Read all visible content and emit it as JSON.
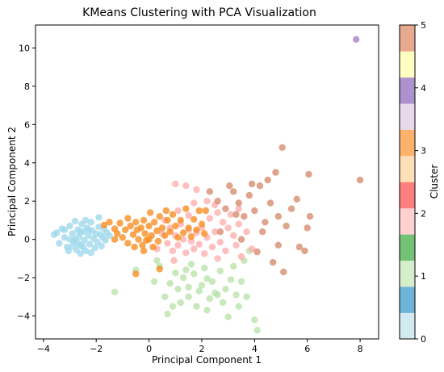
{
  "chart_data": {
    "type": "scatter",
    "title": "KMeans Clustering with PCA Visualization",
    "xlabel": "Principal Component 1",
    "ylabel": "Principal Component 2",
    "xlim": [
      -4.3,
      8.7
    ],
    "ylim": [
      -5.2,
      11.2
    ],
    "xticks": [
      -4,
      -2,
      0,
      2,
      4,
      6,
      8
    ],
    "xtick_labels": [
      "−4",
      "−2",
      "0",
      "2",
      "4",
      "6",
      "8"
    ],
    "yticks": [
      -4,
      -2,
      0,
      2,
      4,
      6,
      8,
      10
    ],
    "ytick_labels": [
      "−4",
      "−2",
      "0",
      "2",
      "4",
      "6",
      "8",
      "10"
    ],
    "grid": false,
    "colorbar": {
      "label": "Cluster",
      "range": [
        0,
        5
      ],
      "ticks": [
        0,
        1,
        2,
        3,
        4,
        5
      ],
      "tick_labels": [
        "0",
        "1",
        "2",
        "3",
        "4",
        "5"
      ],
      "segment_colors": [
        "#d2ebf1",
        "#6fb5d9",
        "#d5efcb",
        "#74c276",
        "#ffd1d1",
        "#ff7f7f",
        "#ffdfb7",
        "#ffb26b",
        "#e7d9ea",
        "#ae92cf",
        "#ffffc2",
        "#e8aa8e"
      ]
    },
    "series": [
      {
        "cluster": 0,
        "color": "#9fd8ea",
        "points": [
          [
            -3.5,
            0.35
          ],
          [
            -3.3,
            0.55
          ],
          [
            -3.2,
            0.1
          ],
          [
            -3.4,
            -0.2
          ],
          [
            -3.1,
            -0.4
          ],
          [
            -3.0,
            0.7
          ],
          [
            -2.9,
            0.3
          ],
          [
            -2.85,
            -0.1
          ],
          [
            -2.8,
            0.95
          ],
          [
            -2.75,
            -0.55
          ],
          [
            -2.7,
            0.5
          ],
          [
            -2.65,
            0.15
          ],
          [
            -2.6,
            -0.3
          ],
          [
            -2.55,
            0.8
          ],
          [
            -2.5,
            0.4
          ],
          [
            -2.45,
            -0.05
          ],
          [
            -2.4,
            -0.6
          ],
          [
            -2.35,
            0.6
          ],
          [
            -2.3,
            0.2
          ],
          [
            -2.25,
            -0.25
          ],
          [
            -2.2,
            0.9
          ],
          [
            -2.15,
            0.45
          ],
          [
            -2.1,
            0.05
          ],
          [
            -2.05,
            -0.45
          ],
          [
            -2.0,
            0.3
          ],
          [
            -1.95,
            -0.15
          ],
          [
            -1.9,
            0.65
          ],
          [
            -1.85,
            0.25
          ],
          [
            -1.8,
            -0.35
          ],
          [
            -1.75,
            0.1
          ],
          [
            -1.7,
            0.55
          ],
          [
            -1.65,
            -0.05
          ],
          [
            -1.6,
            0.35
          ],
          [
            -2.9,
            -0.35
          ],
          [
            -3.0,
            0.0
          ],
          [
            -2.6,
            -0.75
          ],
          [
            -3.2,
            0.5
          ],
          [
            -3.6,
            0.25
          ],
          [
            -2.4,
            1.0
          ],
          [
            -1.9,
            1.15
          ],
          [
            -2.2,
            -0.7
          ],
          [
            -2.8,
            0.0
          ],
          [
            -2.3,
            0.5
          ],
          [
            -2.6,
            0.4
          ],
          [
            -3.05,
            -0.6
          ],
          [
            -2.5,
            -0.4
          ],
          [
            -1.5,
            0.2
          ],
          [
            -2.7,
            -0.2
          ]
        ]
      },
      {
        "cluster": 1,
        "color": "#b9e3a8",
        "points": [
          [
            -1.3,
            -2.75
          ],
          [
            -0.5,
            -1.6
          ],
          [
            0.2,
            -2.2
          ],
          [
            0.4,
            -1.4
          ],
          [
            0.6,
            -3.0
          ],
          [
            0.8,
            -2.3
          ],
          [
            0.9,
            -3.5
          ],
          [
            1.0,
            -1.75
          ],
          [
            1.1,
            -2.6
          ],
          [
            1.2,
            -3.3
          ],
          [
            1.3,
            -2.0
          ],
          [
            1.4,
            -1.6
          ],
          [
            1.5,
            -3.0
          ],
          [
            1.5,
            -2.5
          ],
          [
            1.7,
            -1.8
          ],
          [
            1.8,
            -3.5
          ],
          [
            2.0,
            -2.4
          ],
          [
            2.1,
            -1.5
          ],
          [
            2.2,
            -3.7
          ],
          [
            2.3,
            -3.1
          ],
          [
            2.4,
            -2.2
          ],
          [
            2.6,
            -2.9
          ],
          [
            2.7,
            -1.65
          ],
          [
            2.8,
            -3.3
          ],
          [
            2.9,
            -2.6
          ],
          [
            3.0,
            -4.05
          ],
          [
            3.1,
            -2.1
          ],
          [
            3.2,
            -1.4
          ],
          [
            3.3,
            -2.9
          ],
          [
            3.4,
            -3.5
          ],
          [
            3.5,
            -2.2
          ],
          [
            3.6,
            -1.1
          ],
          [
            3.7,
            -3.0
          ],
          [
            3.8,
            -0.6
          ],
          [
            4.0,
            -4.2
          ],
          [
            4.1,
            -4.75
          ],
          [
            0.7,
            -3.9
          ],
          [
            1.6,
            -1.3
          ],
          [
            2.5,
            -2.8
          ],
          [
            1.9,
            -2.7
          ],
          [
            0.3,
            -1.1
          ],
          [
            2.2,
            -2.05
          ]
        ]
      },
      {
        "cluster": 2,
        "color": "#ffadad",
        "points": [
          [
            0.3,
            -0.5
          ],
          [
            0.5,
            0.3
          ],
          [
            0.7,
            -0.2
          ],
          [
            0.8,
            0.6
          ],
          [
            0.9,
            -0.6
          ],
          [
            1.0,
            0.2
          ],
          [
            1.1,
            -0.3
          ],
          [
            1.2,
            0.8
          ],
          [
            1.3,
            0.0
          ],
          [
            1.4,
            -0.7
          ],
          [
            1.5,
            0.5
          ],
          [
            1.6,
            -0.1
          ],
          [
            1.7,
            -0.5
          ],
          [
            1.8,
            0.35
          ],
          [
            1.9,
            -0.25
          ],
          [
            2.0,
            0.6
          ],
          [
            2.1,
            -0.75
          ],
          [
            2.2,
            0.1
          ],
          [
            2.3,
            1.1
          ],
          [
            2.4,
            -0.4
          ],
          [
            2.5,
            0.4
          ],
          [
            2.6,
            1.4
          ],
          [
            2.7,
            -0.15
          ],
          [
            2.8,
            0.9
          ],
          [
            2.9,
            -0.6
          ],
          [
            3.0,
            0.6
          ],
          [
            3.1,
            1.3
          ],
          [
            3.2,
            0.2
          ],
          [
            3.3,
            -0.3
          ],
          [
            3.4,
            0.8
          ],
          [
            3.5,
            -0.9
          ],
          [
            3.7,
            0.4
          ],
          [
            3.9,
            -0.5
          ],
          [
            1.0,
            2.9
          ],
          [
            1.4,
            2.8
          ],
          [
            1.8,
            2.6
          ],
          [
            2.2,
            2.0
          ],
          [
            2.5,
            1.8
          ],
          [
            1.1,
            1.5
          ],
          [
            1.5,
            1.25
          ],
          [
            0.6,
            1.0
          ],
          [
            3.4,
            1.6
          ],
          [
            0.95,
            -1.1
          ],
          [
            2.6,
            -1.0
          ],
          [
            1.7,
            1.9
          ]
        ]
      },
      {
        "cluster": 3,
        "color": "#f98c1e",
        "points": [
          [
            -1.7,
            0.75
          ],
          [
            -1.5,
            0.9
          ],
          [
            -1.3,
            0.55
          ],
          [
            -1.2,
            0.3
          ],
          [
            -1.1,
            0.85
          ],
          [
            -1.0,
            0.1
          ],
          [
            -0.9,
            0.5
          ],
          [
            -0.8,
            -0.2
          ],
          [
            -0.7,
            0.7
          ],
          [
            -0.6,
            0.25
          ],
          [
            -0.55,
            -0.4
          ],
          [
            -0.5,
            0.9
          ],
          [
            -0.45,
            0.5
          ],
          [
            -0.4,
            0.0
          ],
          [
            -0.3,
            0.6
          ],
          [
            -0.25,
            -0.3
          ],
          [
            -0.2,
            1.0
          ],
          [
            -0.15,
            0.3
          ],
          [
            -0.1,
            -0.05
          ],
          [
            0.0,
            0.7
          ],
          [
            0.05,
            1.4
          ],
          [
            0.1,
            0.2
          ],
          [
            0.15,
            -0.4
          ],
          [
            0.2,
            0.9
          ],
          [
            0.3,
            0.45
          ],
          [
            0.35,
            -0.1
          ],
          [
            0.4,
            1.2
          ],
          [
            0.5,
            0.6
          ],
          [
            0.6,
            0.2
          ],
          [
            0.7,
            1.0
          ],
          [
            0.8,
            0.4
          ],
          [
            0.9,
            1.3
          ],
          [
            1.0,
            0.7
          ],
          [
            1.1,
            0.1
          ],
          [
            1.2,
            1.0
          ],
          [
            1.3,
            0.35
          ],
          [
            1.4,
            1.6
          ],
          [
            1.5,
            0.6
          ],
          [
            1.6,
            0.15
          ],
          [
            1.7,
            1.05
          ],
          [
            1.8,
            0.5
          ],
          [
            1.9,
            1.5
          ],
          [
            2.0,
            0.8
          ],
          [
            2.1,
            0.3
          ],
          [
            2.15,
            1.5
          ],
          [
            -0.5,
            -1.8
          ],
          [
            0.4,
            -1.55
          ],
          [
            -1.3,
            0.0
          ],
          [
            -0.8,
            1.1
          ],
          [
            0.65,
            1.5
          ],
          [
            -0.2,
            -0.6
          ],
          [
            0.0,
            0.0
          ]
        ]
      },
      {
        "cluster": 4,
        "color": "#a57fc6",
        "points": [
          [
            7.85,
            10.45
          ]
        ]
      },
      {
        "cluster": 5,
        "color": "#d58a6b",
        "points": [
          [
            2.3,
            2.5
          ],
          [
            2.6,
            2.0
          ],
          [
            2.9,
            1.6
          ],
          [
            3.05,
            2.8
          ],
          [
            3.2,
            2.5
          ],
          [
            3.4,
            1.9
          ],
          [
            3.6,
            1.2
          ],
          [
            3.8,
            2.3
          ],
          [
            4.0,
            1.5
          ],
          [
            4.2,
            2.8
          ],
          [
            4.4,
            0.9
          ],
          [
            4.5,
            3.1
          ],
          [
            4.6,
            1.9
          ],
          [
            4.8,
            3.5
          ],
          [
            4.9,
            1.2
          ],
          [
            5.05,
            4.8
          ],
          [
            5.2,
            0.7
          ],
          [
            5.4,
            1.6
          ],
          [
            5.6,
            2.1
          ],
          [
            5.7,
            -0.4
          ],
          [
            5.9,
            -0.6
          ],
          [
            6.0,
            0.6
          ],
          [
            6.05,
            3.4
          ],
          [
            6.1,
            1.2
          ],
          [
            8.0,
            3.1
          ],
          [
            4.1,
            -0.65
          ],
          [
            4.3,
            0.4
          ],
          [
            3.5,
            0.0
          ],
          [
            4.7,
            -1.2
          ],
          [
            4.9,
            -0.3
          ],
          [
            5.1,
            -1.7
          ],
          [
            2.7,
            0.4
          ],
          [
            3.9,
            2.9
          ],
          [
            3.3,
            1.3
          ]
        ]
      }
    ]
  }
}
